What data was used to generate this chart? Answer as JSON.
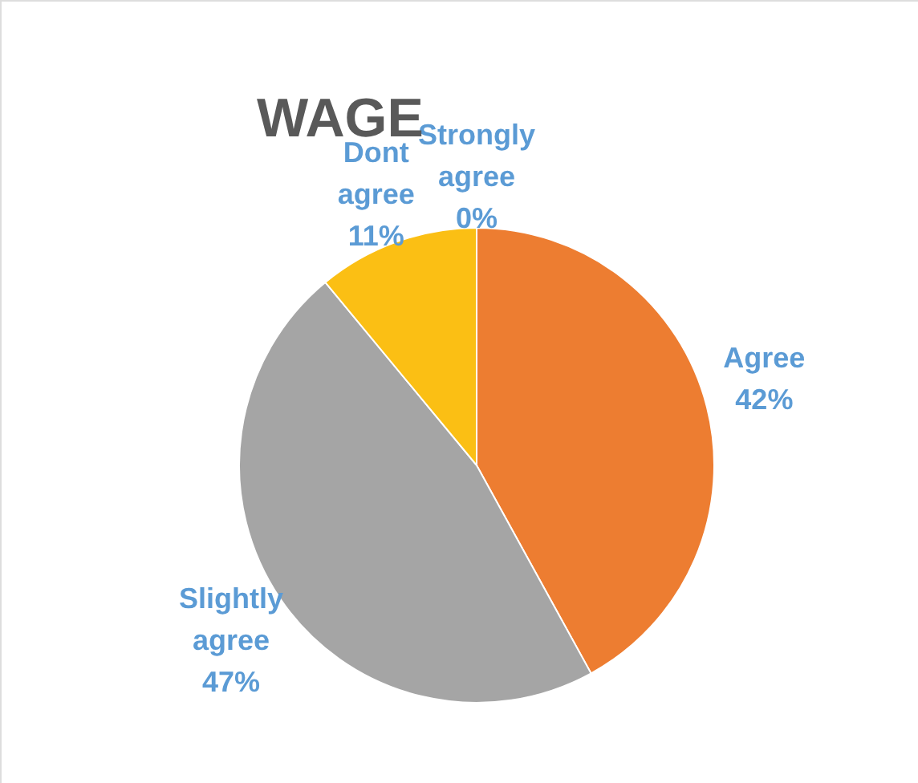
{
  "chart_data": {
    "type": "pie",
    "title": "WAGE",
    "categories": [
      "Strongly agree",
      "Agree",
      "Slightly agree",
      "Dont agree"
    ],
    "values": [
      0,
      42,
      47,
      11
    ],
    "value_labels": [
      "0%",
      "42%",
      "47%",
      "11%"
    ],
    "colors": [
      "#4472c4",
      "#ed7d31",
      "#a5a5a5",
      "#fbbf14"
    ],
    "legend": false
  }
}
